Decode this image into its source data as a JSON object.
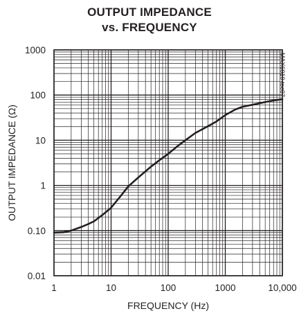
{
  "chart_data": {
    "type": "line",
    "title": "OUTPUT IMPEDANCE",
    "subtitle": "vs. FREQUENCY",
    "xlabel": "FREQUENCY (Hz)",
    "ylabel": "OUTPUT IMPEDANCE (Ω)",
    "xscale": "log",
    "yscale": "log",
    "xlim": [
      1,
      10000
    ],
    "ylim": [
      0.01,
      1000
    ],
    "x_ticks": [
      1,
      10,
      100,
      1000,
      10000
    ],
    "x_tick_labels": [
      "1",
      "10",
      "100",
      "1000",
      "10,000"
    ],
    "y_ticks": [
      0.01,
      0.1,
      1,
      10,
      100,
      1000
    ],
    "y_tick_labels": [
      "0.01",
      "0.10",
      "1",
      "10",
      "100",
      "1000"
    ],
    "grid": true,
    "annotation": "MAX6010 toc07",
    "series": [
      {
        "x": [
          1,
          1.5,
          2,
          3,
          4,
          5,
          7,
          10,
          15,
          20,
          30,
          50,
          70,
          100,
          150,
          200,
          300,
          500,
          700,
          1000,
          1500,
          2000,
          3000,
          5000,
          7000,
          10000
        ],
        "y": [
          0.09,
          0.092,
          0.1,
          0.12,
          0.14,
          0.16,
          0.22,
          0.32,
          0.6,
          0.95,
          1.5,
          2.6,
          3.6,
          5.0,
          7.6,
          10.0,
          14.5,
          20.5,
          26.0,
          36.0,
          48.0,
          55.0,
          61.0,
          70.0,
          76.0,
          81.0
        ]
      }
    ]
  }
}
